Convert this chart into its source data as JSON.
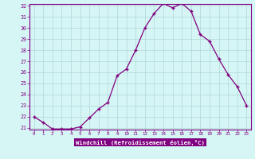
{
  "x": [
    0,
    1,
    2,
    3,
    4,
    5,
    6,
    7,
    8,
    9,
    10,
    11,
    12,
    13,
    14,
    15,
    16,
    17,
    18,
    19,
    20,
    21,
    22,
    23
  ],
  "y": [
    22.0,
    21.5,
    20.9,
    20.9,
    20.9,
    21.1,
    21.9,
    22.7,
    23.3,
    25.7,
    26.3,
    28.0,
    30.0,
    31.3,
    32.2,
    31.8,
    32.2,
    31.5,
    29.4,
    28.8,
    27.2,
    25.8,
    24.7,
    23.0
  ],
  "line_color": "#800080",
  "marker": "+",
  "bg_color": "#d6f5f5",
  "grid_color": "#b0d8d8",
  "axis_label_bg": "#800080",
  "axis_label_color": "#ffffff",
  "xlabel": "Windchill (Refroidissement éolien,°C)",
  "ylim": [
    21,
    32
  ],
  "yticks": [
    21,
    22,
    23,
    24,
    25,
    26,
    27,
    28,
    29,
    30,
    31,
    32
  ],
  "xlim": [
    -0.5,
    23.5
  ],
  "xticks": [
    0,
    1,
    2,
    3,
    4,
    5,
    6,
    7,
    8,
    9,
    10,
    11,
    12,
    13,
    14,
    15,
    16,
    17,
    18,
    19,
    20,
    21,
    22,
    23
  ]
}
